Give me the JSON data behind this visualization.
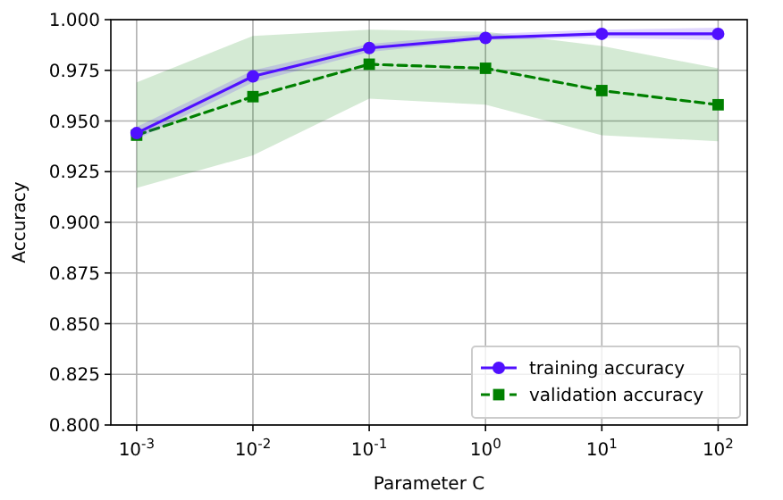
{
  "chart_data": {
    "type": "line",
    "xlabel": "Parameter C",
    "ylabel": "Accuracy",
    "log": "x",
    "grid": true,
    "legend": "bottom right",
    "x": [
      0.001,
      0.01,
      0.1,
      1,
      10,
      100
    ],
    "xlim": [
      0.0006,
      178
    ],
    "xticks": [
      {
        "value": 0.001,
        "label": "10$^{-3}$"
      },
      {
        "value": 0.01,
        "label": "10$^{-2}$"
      },
      {
        "value": 0.1,
        "label": "10$^{-1}$"
      },
      {
        "value": 1,
        "label": "10$^{0}$"
      },
      {
        "value": 10,
        "label": "10$^{1}$"
      },
      {
        "value": 100,
        "label": "10$^{2}$"
      }
    ],
    "ylim": [
      0.8,
      1.0
    ],
    "yticks": [
      {
        "value": 0.8,
        "label": "0.800"
      },
      {
        "value": 0.825,
        "label": "0.825"
      },
      {
        "value": 0.85,
        "label": "0.850"
      },
      {
        "value": 0.875,
        "label": "0.875"
      },
      {
        "value": 0.9,
        "label": "0.900"
      },
      {
        "value": 0.925,
        "label": "0.925"
      },
      {
        "value": 0.95,
        "label": "0.950"
      },
      {
        "value": 0.975,
        "label": "0.975"
      },
      {
        "value": 1.0,
        "label": "1.000"
      }
    ],
    "series": [
      {
        "name": "training accuracy",
        "color": "#5010ff",
        "marker": "circle",
        "line_style": "solid",
        "values": [
          0.944,
          0.972,
          0.986,
          0.991,
          0.993,
          0.993
        ],
        "lower": [
          0.941,
          0.969,
          0.984,
          0.99,
          0.991,
          0.99
        ],
        "upper": [
          0.947,
          0.975,
          0.988,
          0.993,
          0.995,
          0.996
        ]
      },
      {
        "name": "validation accuracy",
        "color": "#008000",
        "marker": "square",
        "line_style": "dashed",
        "values": [
          0.943,
          0.962,
          0.978,
          0.976,
          0.965,
          0.958
        ],
        "lower": [
          0.917,
          0.933,
          0.961,
          0.958,
          0.943,
          0.94
        ],
        "upper": [
          0.969,
          0.992,
          0.995,
          0.994,
          0.987,
          0.976
        ]
      }
    ]
  }
}
